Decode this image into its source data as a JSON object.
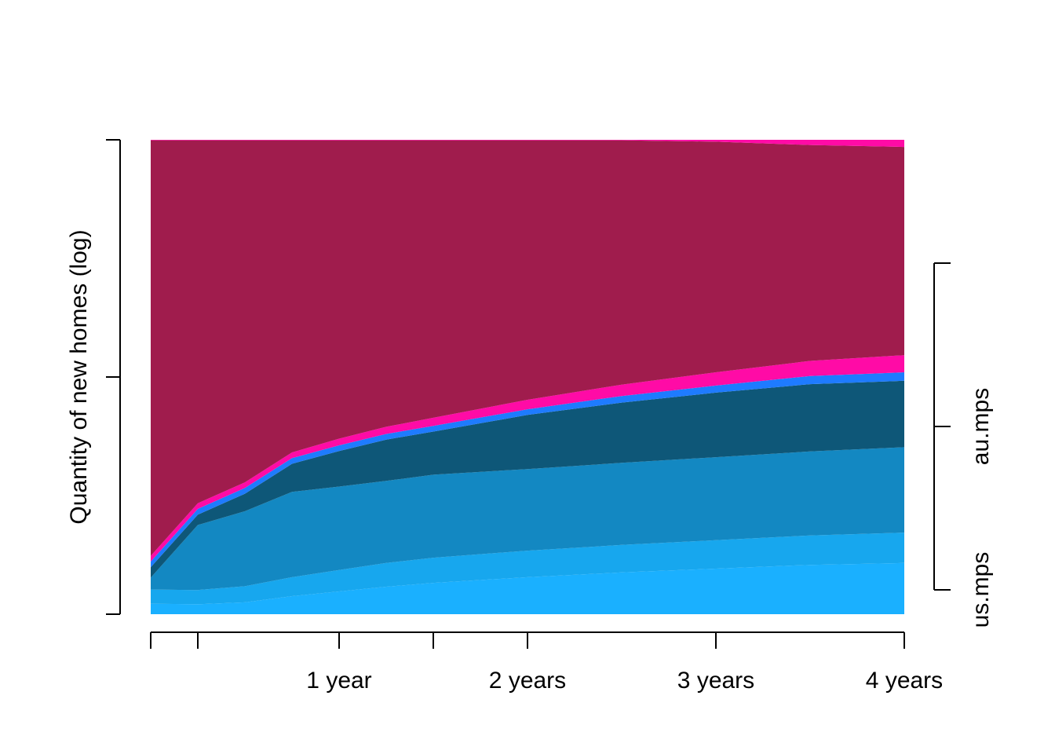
{
  "chart_data": {
    "type": "area",
    "title": "",
    "xlabel": "",
    "ylabel": "Quantity of new homes (log)",
    "x_unit": "years",
    "xlim": [
      0,
      4
    ],
    "ylim": [
      0,
      1
    ],
    "x": [
      0,
      0.25,
      0.5,
      0.75,
      1,
      1.25,
      1.5,
      2,
      2.5,
      3,
      3.5,
      4
    ],
    "x_ticks": [
      0,
      0.25,
      1,
      1.5,
      2,
      3,
      4
    ],
    "x_tick_labels": [
      {
        "value": 1,
        "label": "1 year"
      },
      {
        "value": 2,
        "label": "2 years"
      },
      {
        "value": 3,
        "label": "3 years"
      },
      {
        "value": 4,
        "label": "4 years"
      }
    ],
    "y_ticks": [
      0,
      0.5,
      1
    ],
    "grid": false,
    "series": [
      {
        "color": "#1AB0FF",
        "values": [
          0.022,
          0.021,
          0.025,
          0.038,
          0.048,
          0.058,
          0.066,
          0.078,
          0.088,
          0.096,
          0.104,
          0.108
        ]
      },
      {
        "color": "#17A7EE",
        "values": [
          0.03,
          0.03,
          0.034,
          0.04,
          0.045,
          0.05,
          0.053,
          0.056,
          0.058,
          0.06,
          0.062,
          0.064
        ]
      },
      {
        "color": "#1388C2",
        "values": [
          0.025,
          0.137,
          0.158,
          0.18,
          0.176,
          0.173,
          0.175,
          0.172,
          0.173,
          0.175,
          0.177,
          0.18
        ]
      },
      {
        "color": "#0E5778",
        "values": [
          0.022,
          0.022,
          0.037,
          0.059,
          0.075,
          0.087,
          0.091,
          0.114,
          0.127,
          0.136,
          0.142,
          0.14
        ]
      },
      {
        "color": "#1E7BFF",
        "values": [
          0.012,
          0.012,
          0.012,
          0.012,
          0.012,
          0.012,
          0.012,
          0.012,
          0.014,
          0.015,
          0.017,
          0.018
        ]
      },
      {
        "color": "#FF0BA6",
        "values": [
          0.012,
          0.012,
          0.012,
          0.012,
          0.014,
          0.015,
          0.017,
          0.02,
          0.024,
          0.028,
          0.032,
          0.036
        ]
      },
      {
        "color": "#A01C4D",
        "values": [
          0.876,
          0.765,
          0.721,
          0.658,
          0.629,
          0.604,
          0.585,
          0.547,
          0.515,
          0.486,
          0.455,
          0.439
        ]
      },
      {
        "color": "#FF0BA6",
        "values": [
          0.001,
          0.001,
          0.001,
          0.001,
          0.001,
          0.001,
          0.001,
          0.001,
          0.001,
          0.004,
          0.011,
          0.015
        ]
      }
    ],
    "right_axis": {
      "ylim": [
        0,
        1
      ],
      "ticks": [
        0.05,
        0.37,
        0.69
      ],
      "labels": [
        {
          "value": 0.05,
          "label": "us.mps"
        },
        {
          "value": 0.37,
          "label": "au.mps"
        }
      ]
    }
  }
}
